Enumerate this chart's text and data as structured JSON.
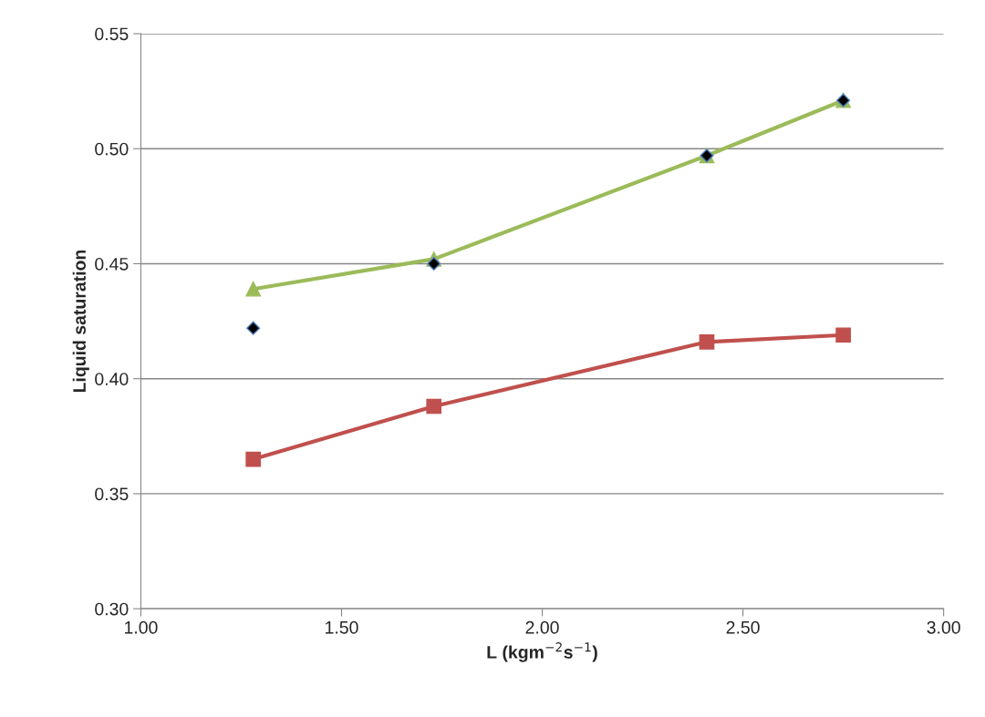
{
  "chart_data": {
    "type": "line",
    "xlabel": "L (kgm$^{−2}$s$^{−1}$)",
    "ylabel": "Liquid saturation",
    "x": [
      1.28,
      1.73,
      2.41,
      2.75
    ],
    "series": [
      {
        "color": "#9bbb59",
        "marker": "triangle",
        "values": [
          0.439,
          0.452,
          0.497,
          0.521
        ]
      },
      {
        "type": "scatter",
        "color": "#000000",
        "marker": "diamond",
        "values": [
          0.422,
          0.45,
          0.497,
          0.521
        ]
      },
      {
        "color": "#c0504d",
        "marker": "square",
        "values": [
          0.365,
          0.388,
          0.416,
          0.419
        ]
      }
    ],
    "xlim": [
      1.0,
      3.0
    ],
    "xticks": [
      {
        "value": 1.0,
        "label": "1.00"
      },
      {
        "value": 1.5,
        "label": "1.50"
      },
      {
        "value": 2.0,
        "label": "2.00"
      },
      {
        "value": 2.5,
        "label": "2.50"
      },
      {
        "value": 3.0,
        "label": "3.00"
      }
    ],
    "ylim": [
      0.3,
      0.55
    ],
    "yticks": [
      {
        "value": 0.3,
        "label": "0.30"
      },
      {
        "value": 0.35,
        "label": "0.35"
      },
      {
        "value": 0.4,
        "label": "0.40"
      },
      {
        "value": 0.45,
        "label": "0.45"
      },
      {
        "value": 0.5,
        "label": "0.50"
      },
      {
        "value": 0.55,
        "label": "0.55"
      }
    ],
    "grid": "y"
  }
}
